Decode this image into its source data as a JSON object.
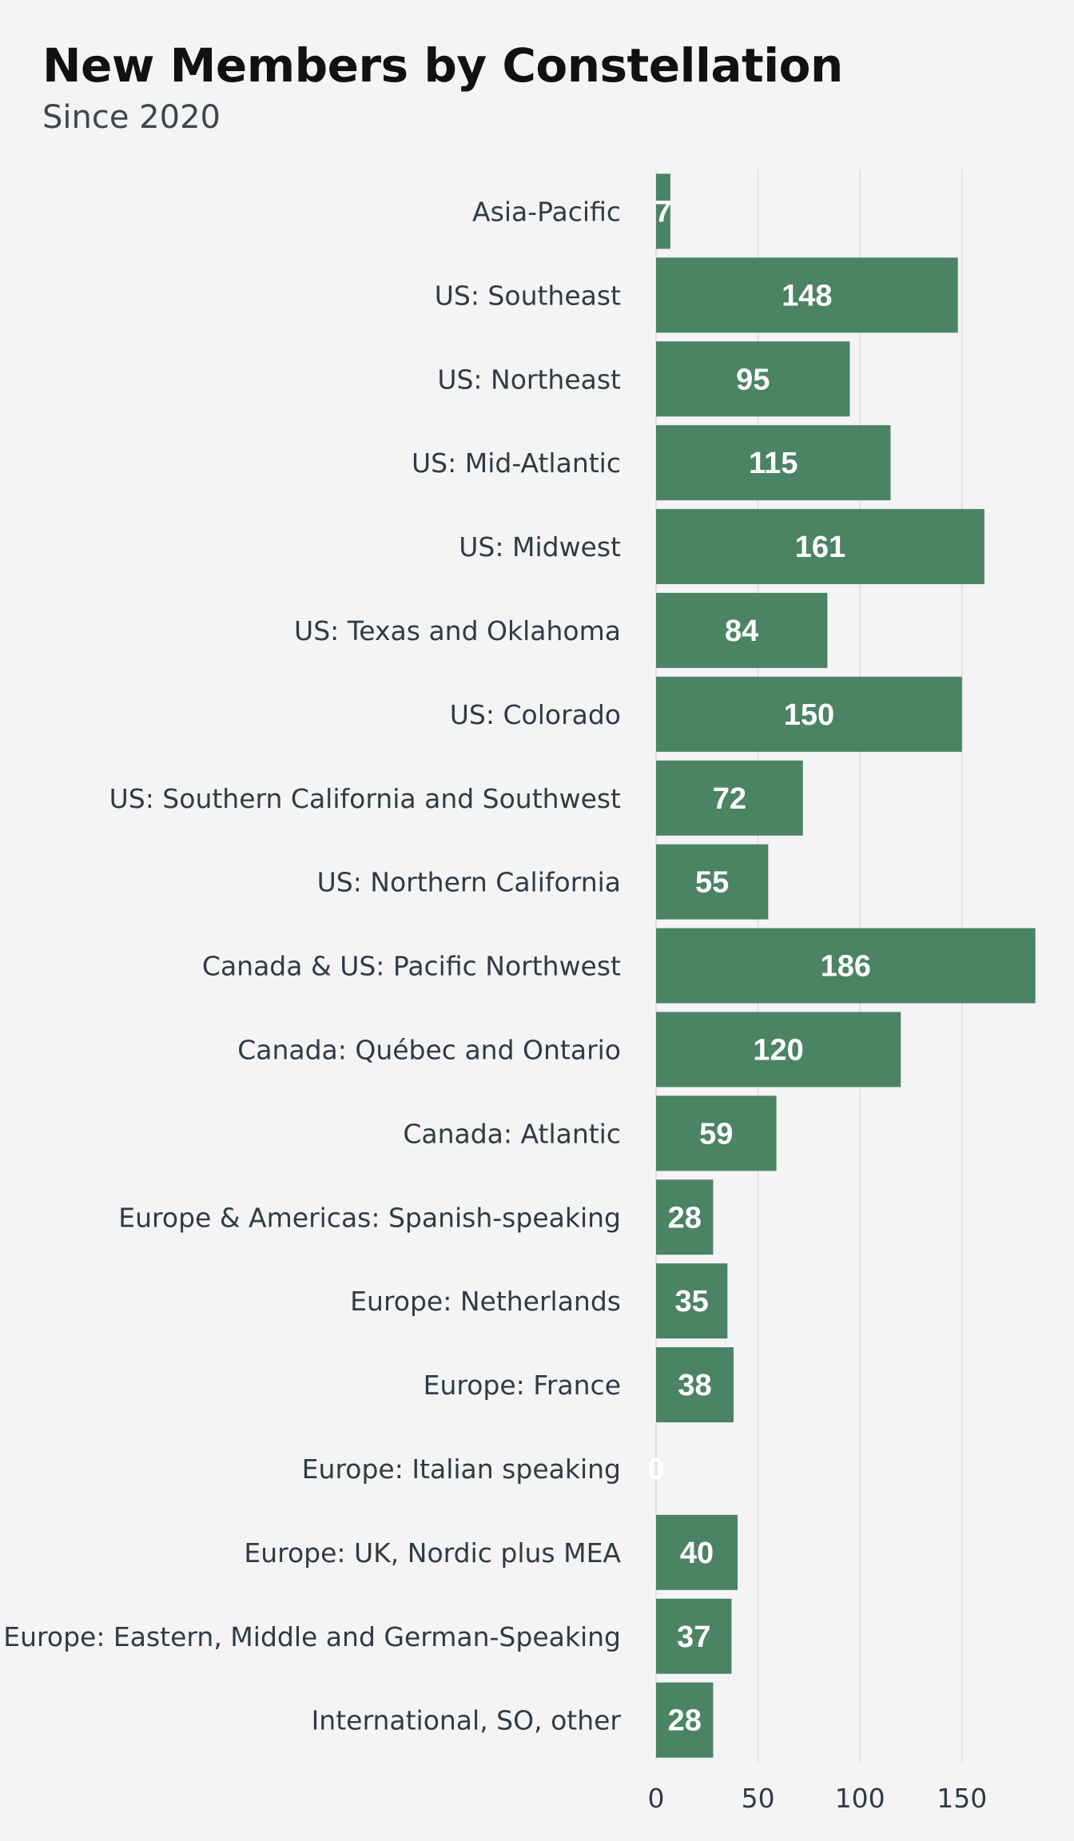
{
  "chart_data": {
    "type": "bar",
    "orientation": "horizontal",
    "title": "New Members by Constellation",
    "subtitle": "Since 2020",
    "xlabel": "",
    "ylabel": "",
    "xlim": [
      0,
      187
    ],
    "xticks": [
      0,
      50,
      100,
      150
    ],
    "grid": true,
    "bar_color": "#4a8462",
    "categories": [
      "Asia-Pacific",
      "US: Southeast",
      "US: Northeast",
      "US: Mid-Atlantic",
      "US: Midwest",
      "US: Texas and Oklahoma",
      "US: Colorado",
      "US: Southern California and Southwest",
      "US: Northern California",
      "Canada & US: Pacific Northwest",
      "Canada: Québec and Ontario",
      "Canada: Atlantic",
      "Europe & Americas: Spanish-speaking",
      "Europe: Netherlands",
      "Europe: France",
      "Europe: Italian speaking",
      "Europe: UK, Nordic plus MEA",
      "Europe: Eastern, Middle and German-Speaking",
      "International, SO, other"
    ],
    "values": [
      7,
      148,
      95,
      115,
      161,
      84,
      150,
      72,
      55,
      186,
      120,
      59,
      28,
      35,
      38,
      0,
      40,
      37,
      28
    ]
  }
}
